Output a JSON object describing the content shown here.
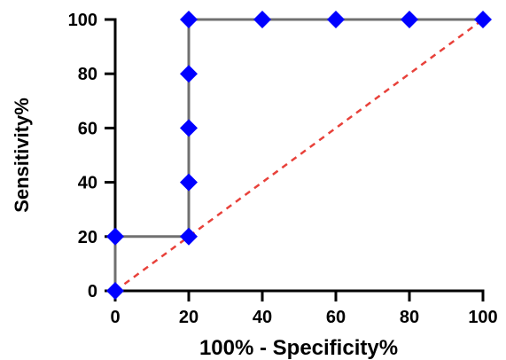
{
  "chart_data": {
    "type": "line",
    "xlabel": "100% - Specificity%",
    "ylabel": "Sensitivity%",
    "xlim": [
      0,
      100
    ],
    "ylim": [
      0,
      100
    ],
    "x_ticks": [
      "0",
      "20",
      "40",
      "60",
      "80",
      "100"
    ],
    "y_ticks": [
      "0",
      "20",
      "40",
      "60",
      "80",
      "100"
    ],
    "grid": false,
    "legend": "none",
    "series": [
      {
        "x": [
          0,
          0,
          20,
          20,
          20,
          20,
          20,
          40,
          60,
          80,
          100
        ],
        "y": [
          0,
          20,
          20,
          40,
          60,
          80,
          100,
          100,
          100,
          100,
          100
        ],
        "line_color": "#707070",
        "marker": "diamond",
        "marker_color": "#0000ff"
      },
      {
        "x": [
          0,
          100
        ],
        "y": [
          0,
          100
        ],
        "line_color": "#e8413a",
        "line_style": "dashed",
        "marker": "none"
      }
    ]
  }
}
